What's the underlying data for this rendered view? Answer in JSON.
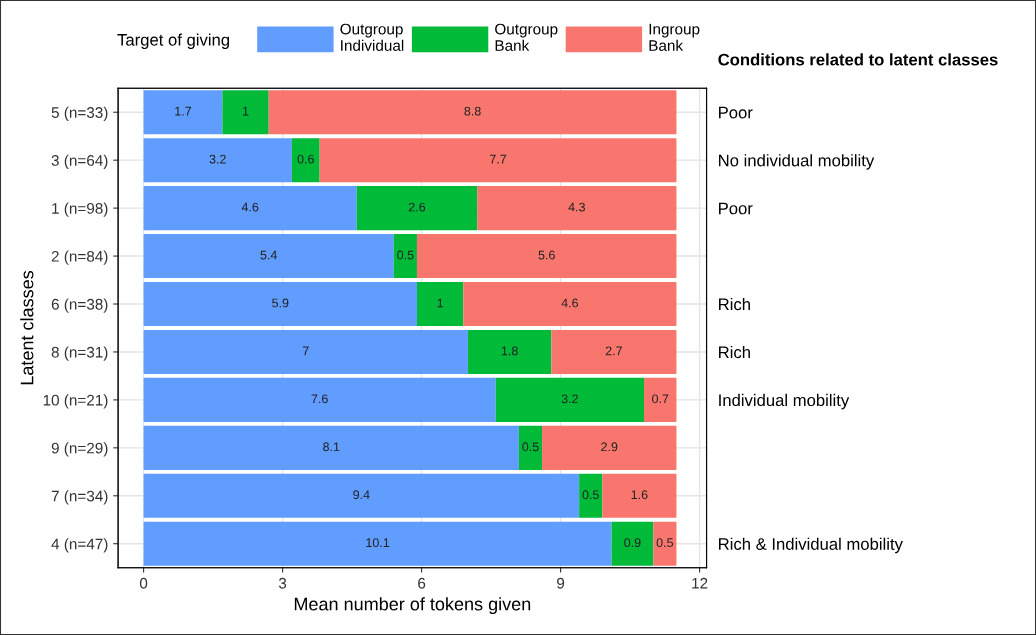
{
  "chart_data": {
    "type": "bar",
    "orientation": "horizontal",
    "stacked": true,
    "data_labels": true,
    "grid": true,
    "legend": "top",
    "legend_title": "Target of giving",
    "xlabel": "Mean number of tokens given",
    "ylabel": "Latent classes",
    "categories": [
      "5 (n=33)",
      "3 (n=64)",
      "1 (n=98)",
      "2 (n=84)",
      "6 (n=38)",
      "8 (n=31)",
      "10 (n=21)",
      "9 (n=29)",
      "7 (n=34)",
      "4 (n=47)"
    ],
    "xlim": [
      -0.55,
      12.15
    ],
    "xticks": [
      0,
      3,
      6,
      9,
      12
    ],
    "series": [
      {
        "name": "Outgroup\nIndividual",
        "color": "#619cff",
        "values": [
          1.7,
          3.2,
          4.6,
          5.4,
          5.9,
          7,
          7.6,
          8.1,
          9.4,
          10.1
        ]
      },
      {
        "name": "Outgroup\nBank",
        "color": "#00ba38",
        "values": [
          1,
          0.6,
          2.6,
          0.5,
          1,
          1.8,
          3.2,
          0.5,
          0.5,
          0.9
        ]
      },
      {
        "name": "Ingroup\nBank",
        "color": "#f8766d",
        "values": [
          8.8,
          7.7,
          4.3,
          5.6,
          4.6,
          2.7,
          0.7,
          2.9,
          1.6,
          0.5
        ]
      }
    ],
    "y2_categories": [
      "Poor",
      "No individual mobility",
      "Poor",
      null,
      "Rich",
      "Rich",
      "Individual mobility",
      null,
      null,
      "Rich & Individual mobility"
    ],
    "annotations": [
      "Conditions related to latent classes"
    ]
  }
}
